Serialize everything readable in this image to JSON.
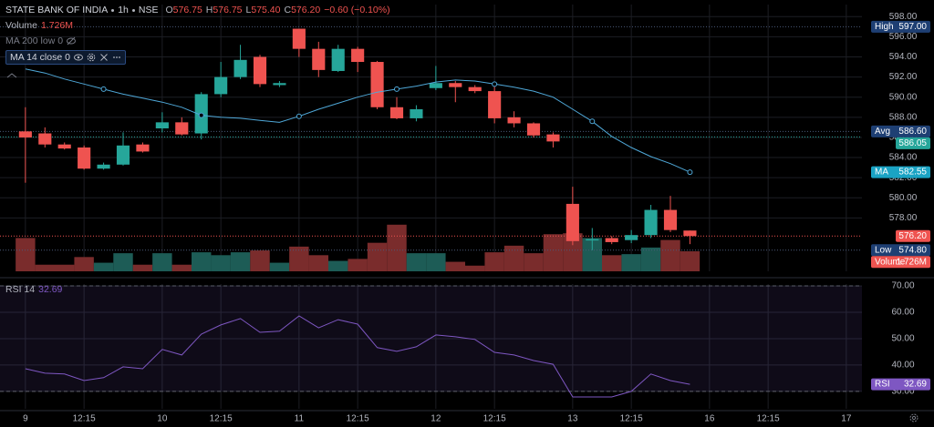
{
  "chart_data": [
    {
      "type": "candlestick",
      "title": "STATE BANK OF INDIA",
      "interval": "1h",
      "exchange": "NSE",
      "header": [
        {
          "key": "O",
          "text": "576.75"
        },
        {
          "key": "H",
          "text": "576.75"
        },
        {
          "key": "L",
          "text": "575.40"
        },
        {
          "key": "C",
          "text": "576.20"
        }
      ],
      "change": "−0.60 (−0.10%)",
      "header_color": "#ef5350",
      "indicator_labels": [
        "MA 200 low 0"
      ],
      "x": [
        0,
        1,
        2,
        3,
        4,
        5,
        6,
        7,
        8,
        9,
        10,
        11,
        12,
        13,
        14,
        15,
        16,
        17,
        18,
        19,
        20,
        21,
        22,
        23,
        24,
        25,
        26,
        27,
        28,
        29,
        30,
        31,
        32,
        33,
        34
      ],
      "xlim": [
        -1.3,
        42.8
      ],
      "xticks": [
        {
          "value": 0,
          "label": "9"
        },
        {
          "value": 3,
          "label": "12:15"
        },
        {
          "value": 7,
          "label": "10"
        },
        {
          "value": 10,
          "label": "12:15"
        },
        {
          "value": 14,
          "label": "11"
        },
        {
          "value": 17,
          "label": "12:15"
        },
        {
          "value": 21,
          "label": "12"
        },
        {
          "value": 24,
          "label": "12:15"
        },
        {
          "value": 28,
          "label": "13"
        },
        {
          "value": 31,
          "label": "12:15"
        },
        {
          "value": 35,
          "label": "16"
        },
        {
          "value": 38,
          "label": "12:15"
        },
        {
          "value": 42,
          "label": "17"
        }
      ],
      "open": [
        586.6,
        586.4,
        585.3,
        585.0,
        582.9,
        583.3,
        585.3,
        586.9,
        587.5,
        586.4,
        590.3,
        592.0,
        594.0,
        591.2,
        596.8,
        594.8,
        592.6,
        594.8,
        593.5,
        589.0,
        587.9,
        590.9,
        591.4,
        591.0,
        590.6,
        588.0,
        587.4,
        586.3,
        579.4,
        575.8,
        576.0,
        575.8,
        576.3,
        578.8,
        576.75
      ],
      "high": [
        589.0,
        587.0,
        585.5,
        585.2,
        583.5,
        586.5,
        585.5,
        588.5,
        588.0,
        590.5,
        593.5,
        595.2,
        594.2,
        591.6,
        596.8,
        595.5,
        595.2,
        595.0,
        593.6,
        590.0,
        589.2,
        593.1,
        591.6,
        591.2,
        591.3,
        588.6,
        587.5,
        586.5,
        581.1,
        577.0,
        576.2,
        576.8,
        579.3,
        580.2,
        576.75
      ],
      "low": [
        581.5,
        585.0,
        584.8,
        582.8,
        582.8,
        583.2,
        584.5,
        586.5,
        586.2,
        585.8,
        590.0,
        591.8,
        591.0,
        591.0,
        594.0,
        592.0,
        592.5,
        592.5,
        588.8,
        587.8,
        587.6,
        590.7,
        589.5,
        590.4,
        587.4,
        587.0,
        586.0,
        585.0,
        575.3,
        574.8,
        575.4,
        575.5,
        576.0,
        576.6,
        575.4
      ],
      "close": [
        586.0,
        585.3,
        584.9,
        582.9,
        583.3,
        585.2,
        584.6,
        587.5,
        586.3,
        590.3,
        592.0,
        593.7,
        591.3,
        591.4,
        594.8,
        592.7,
        594.8,
        593.5,
        589.0,
        587.9,
        588.8,
        591.4,
        591.0,
        590.6,
        587.9,
        587.4,
        586.2,
        585.6,
        575.7,
        575.9,
        575.6,
        576.3,
        578.8,
        576.8,
        576.2
      ],
      "up_color": "#26a69a",
      "down_color": "#ef5350",
      "volume": {
        "name": "Volume",
        "value_label": "1.726M",
        "lim": [
          0,
          23
        ],
        "up_color": "#1d5c56",
        "down_color": "#7a2c2c",
        "label_color": "#ef5350",
        "values": [
          2.87,
          0.57,
          0.57,
          1.23,
          0.74,
          1.56,
          0.57,
          1.56,
          0.57,
          1.64,
          1.39,
          1.64,
          1.8,
          0.74,
          2.13,
          1.39,
          0.9,
          1.07,
          2.46,
          4.02,
          1.56,
          1.56,
          0.82,
          0.49,
          1.64,
          2.21,
          1.56,
          3.2,
          3.28,
          2.87,
          1.39,
          1.48,
          2.05,
          2.7,
          1.726
        ]
      },
      "ma": {
        "name": "MA 14 close 0",
        "short_name": "MA",
        "value_label": "582.55",
        "color": "#4fa8d8",
        "label_color": "#1aa3c4",
        "marker_every": 5,
        "values": [
          592.8,
          592.4,
          591.8,
          591.3,
          590.8,
          590.3,
          589.9,
          589.5,
          589.0,
          588.2,
          588.0,
          587.9,
          587.7,
          587.5,
          588.1,
          588.8,
          589.4,
          590.0,
          590.5,
          590.8,
          591.1,
          591.5,
          591.7,
          591.6,
          591.3,
          591.0,
          590.6,
          590.0,
          588.8,
          587.6,
          586.1,
          585.0,
          584.1,
          583.4,
          582.55
        ]
      },
      "ylim": [
        572.7,
        599.2
      ],
      "yticks": [
        {
          "value": 578,
          "label": "578.00"
        },
        {
          "value": 580,
          "label": "580.00"
        },
        {
          "value": 582,
          "label": "582.00"
        },
        {
          "value": 584,
          "label": "584.00"
        },
        {
          "value": 586,
          "label": "586.00"
        },
        {
          "value": 588,
          "label": "588.00"
        },
        {
          "value": 590,
          "label": "590.00"
        },
        {
          "value": 592,
          "label": "592.00"
        },
        {
          "value": 594,
          "label": "594.00"
        },
        {
          "value": 596,
          "label": "596.00"
        },
        {
          "value": 598,
          "label": "598.00"
        }
      ],
      "grid": true,
      "price_lines": [
        {
          "name": "High",
          "value": 597,
          "label": "597.00",
          "color": "#1e3f73"
        },
        {
          "name": "Avg",
          "value": 586.6,
          "label": "586.60",
          "color": "#1e3f73"
        },
        {
          "value": 586.05,
          "label": "586.05",
          "color": "#26a69a"
        },
        {
          "value": 576.2,
          "label": "576.20",
          "color": "#ef5350"
        },
        {
          "name": "Low",
          "value": 574.8,
          "label": "574.80",
          "color": "#1e3f73"
        }
      ]
    },
    {
      "type": "line",
      "title": "RSI 14",
      "value_label": "32.69",
      "series": [
        {
          "name": "RSI",
          "color": "#7e57c2",
          "values": [
            38.6,
            36.9,
            36.6,
            34.1,
            35.2,
            39.3,
            38.6,
            45.9,
            43.8,
            51.7,
            55.2,
            57.6,
            52.4,
            52.8,
            58.6,
            54.1,
            57.2,
            55.5,
            46.6,
            45.2,
            46.9,
            51.4,
            50.7,
            49.7,
            44.8,
            43.8,
            41.7,
            40.3,
            27.9,
            27.9,
            27.9,
            30.0,
            36.6,
            34.1,
            32.69
          ]
        }
      ],
      "band": [
        30,
        70
      ],
      "band_color": "rgba(126,87,194,0.12)",
      "ylim": [
        23.4,
        70.7
      ],
      "yticks": [
        {
          "value": 30,
          "label": "30.00"
        },
        {
          "value": 40,
          "label": "40.00"
        },
        {
          "value": 50,
          "label": "50.00"
        },
        {
          "value": 60,
          "label": "60.00"
        },
        {
          "value": 70,
          "label": "70.00"
        }
      ],
      "grid": true
    }
  ]
}
